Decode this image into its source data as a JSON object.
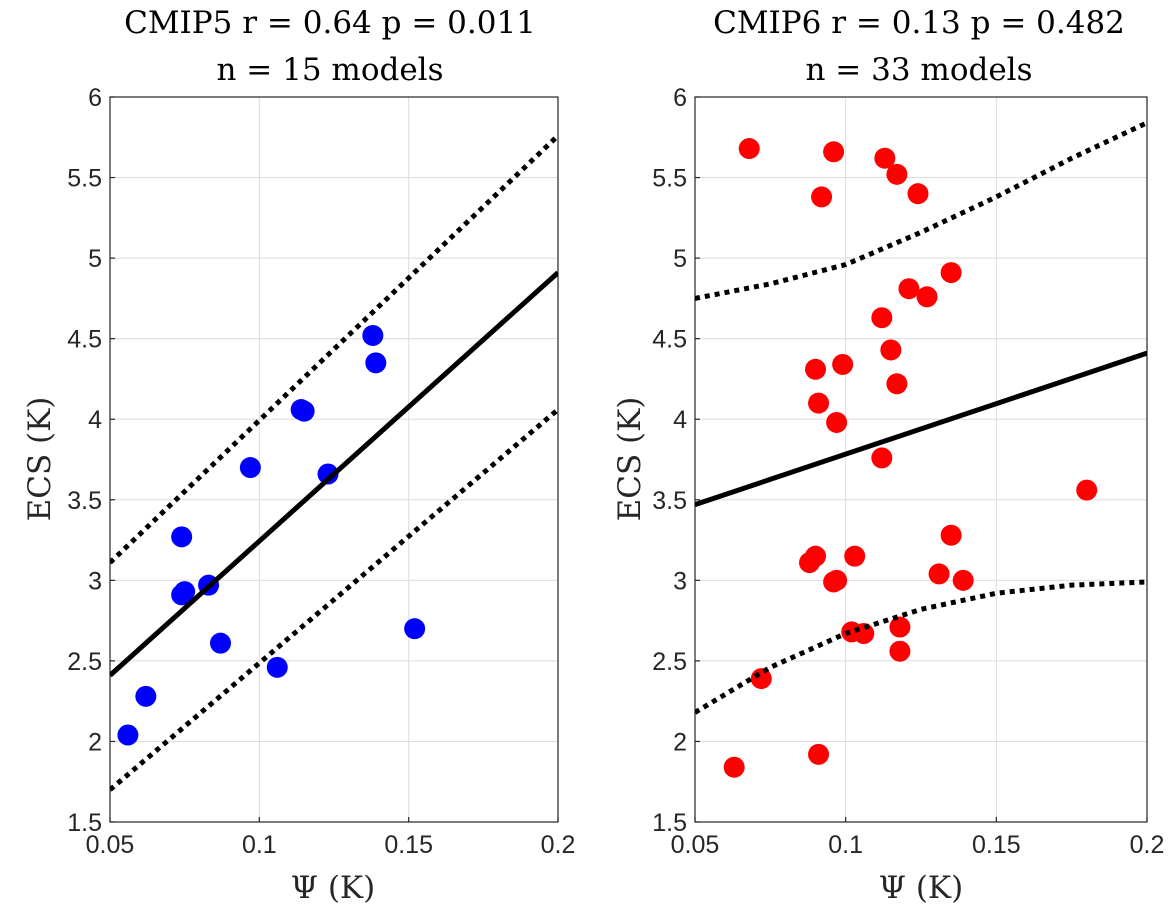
{
  "chart_data": [
    {
      "type": "scatter",
      "title": "CMIP5 r = 0.64 p = 0.011",
      "subtitle": "n = 15 models",
      "xlabel": "Ψ (K)",
      "ylabel": "ECS (K)",
      "xlim": [
        0.05,
        0.2
      ],
      "ylim": [
        1.5,
        6
      ],
      "xticks": [
        "0.05",
        "0.1",
        "0.15",
        "0.2"
      ],
      "yticks": [
        "1.5",
        "2",
        "2.5",
        "3",
        "3.5",
        "4",
        "4.5",
        "5",
        "5.5",
        "6"
      ],
      "grid": true,
      "marker_color": "#0000ff",
      "points": [
        [
          0.056,
          2.04
        ],
        [
          0.062,
          2.28
        ],
        [
          0.074,
          2.91
        ],
        [
          0.075,
          2.93
        ],
        [
          0.074,
          3.27
        ],
        [
          0.083,
          2.97
        ],
        [
          0.087,
          2.61
        ],
        [
          0.097,
          3.7
        ],
        [
          0.106,
          2.46
        ],
        [
          0.114,
          4.06
        ],
        [
          0.115,
          4.05
        ],
        [
          0.123,
          3.66
        ],
        [
          0.138,
          4.52
        ],
        [
          0.139,
          4.35
        ],
        [
          0.152,
          2.7
        ]
      ],
      "fit_line": [
        [
          0.05,
          2.41
        ],
        [
          0.2,
          4.91
        ]
      ],
      "prediction_upper": [
        [
          0.05,
          3.11
        ],
        [
          0.2,
          5.76
        ]
      ],
      "prediction_lower": [
        [
          0.05,
          1.7
        ],
        [
          0.2,
          4.06
        ]
      ]
    },
    {
      "type": "scatter",
      "title": "CMIP6 r = 0.13 p = 0.482",
      "subtitle": "n = 33 models",
      "xlabel": "Ψ (K)",
      "ylabel": "ECS (K)",
      "xlim": [
        0.05,
        0.2
      ],
      "ylim": [
        1.5,
        6
      ],
      "xticks": [
        "0.05",
        "0.1",
        "0.15",
        "0.2"
      ],
      "yticks": [
        "1.5",
        "2",
        "2.5",
        "3",
        "3.5",
        "4",
        "4.5",
        "5",
        "5.5",
        "6"
      ],
      "grid": true,
      "marker_color": "#ff0000",
      "points": [
        [
          0.068,
          5.68
        ],
        [
          0.096,
          5.66
        ],
        [
          0.092,
          5.38
        ],
        [
          0.113,
          5.62
        ],
        [
          0.117,
          5.52
        ],
        [
          0.124,
          5.4
        ],
        [
          0.135,
          4.91
        ],
        [
          0.121,
          4.81
        ],
        [
          0.127,
          4.76
        ],
        [
          0.112,
          4.63
        ],
        [
          0.099,
          4.34
        ],
        [
          0.09,
          4.31
        ],
        [
          0.115,
          4.43
        ],
        [
          0.117,
          4.22
        ],
        [
          0.091,
          4.1
        ],
        [
          0.097,
          3.98
        ],
        [
          0.112,
          3.76
        ],
        [
          0.18,
          3.56
        ],
        [
          0.135,
          3.28
        ],
        [
          0.09,
          3.15
        ],
        [
          0.088,
          3.11
        ],
        [
          0.103,
          3.15
        ],
        [
          0.097,
          3.0
        ],
        [
          0.131,
          3.04
        ],
        [
          0.139,
          3.0
        ],
        [
          0.118,
          2.71
        ],
        [
          0.102,
          2.68
        ],
        [
          0.106,
          2.67
        ],
        [
          0.118,
          2.56
        ],
        [
          0.072,
          2.39
        ],
        [
          0.063,
          1.84
        ],
        [
          0.091,
          1.92
        ],
        [
          0.096,
          2.99
        ]
      ],
      "fit_line": [
        [
          0.05,
          3.47
        ],
        [
          0.2,
          4.41
        ]
      ],
      "prediction_upper": [
        [
          0.05,
          4.75
        ],
        [
          0.075,
          4.84
        ],
        [
          0.1,
          4.96
        ],
        [
          0.125,
          5.16
        ],
        [
          0.15,
          5.38
        ],
        [
          0.175,
          5.62
        ],
        [
          0.2,
          5.84
        ]
      ],
      "prediction_lower": [
        [
          0.05,
          2.18
        ],
        [
          0.075,
          2.46
        ],
        [
          0.1,
          2.67
        ],
        [
          0.125,
          2.82
        ],
        [
          0.15,
          2.92
        ],
        [
          0.175,
          2.97
        ],
        [
          0.2,
          2.99
        ]
      ]
    }
  ]
}
